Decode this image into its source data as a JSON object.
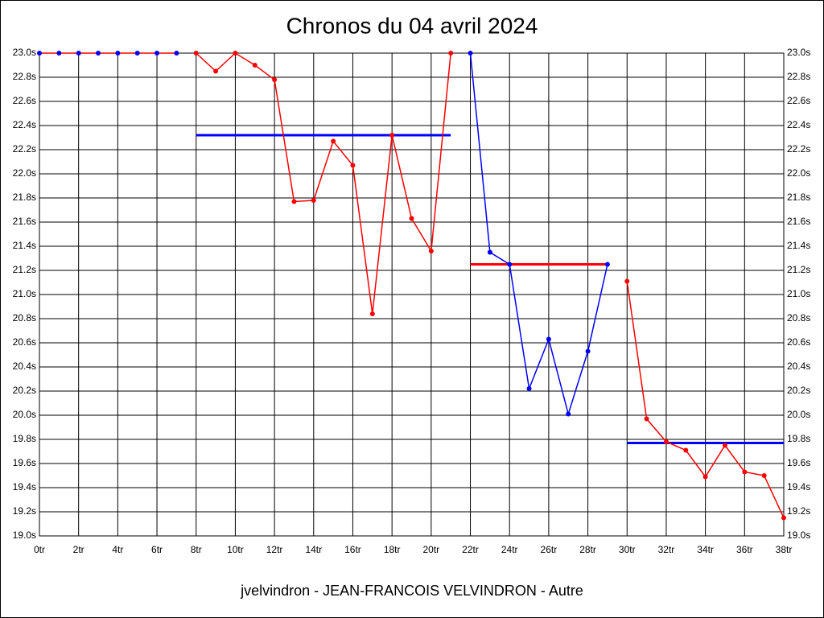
{
  "chart_data": {
    "type": "line",
    "title": "Chronos du 04 avril 2024",
    "caption": "jvelvindron - JEAN-FRANCOIS VELVINDRON - Autre",
    "xlim": [
      0,
      38
    ],
    "ylim": [
      19.0,
      23.0
    ],
    "grid": true,
    "xticks": [
      {
        "value": 0,
        "label": "0tr"
      },
      {
        "value": 2,
        "label": "2tr"
      },
      {
        "value": 4,
        "label": "4tr"
      },
      {
        "value": 6,
        "label": "6tr"
      },
      {
        "value": 8,
        "label": "8tr"
      },
      {
        "value": 10,
        "label": "10tr"
      },
      {
        "value": 12,
        "label": "12tr"
      },
      {
        "value": 14,
        "label": "14tr"
      },
      {
        "value": 16,
        "label": "16tr"
      },
      {
        "value": 18,
        "label": "18tr"
      },
      {
        "value": 20,
        "label": "20tr"
      },
      {
        "value": 22,
        "label": "22tr"
      },
      {
        "value": 24,
        "label": "24tr"
      },
      {
        "value": 26,
        "label": "26tr"
      },
      {
        "value": 28,
        "label": "28tr"
      },
      {
        "value": 30,
        "label": "30tr"
      },
      {
        "value": 32,
        "label": "32tr"
      },
      {
        "value": 34,
        "label": "34tr"
      },
      {
        "value": 36,
        "label": "36tr"
      },
      {
        "value": 38,
        "label": "38tr"
      }
    ],
    "yticks": [
      {
        "value": 19.0,
        "label": "19.0s"
      },
      {
        "value": 19.2,
        "label": "19.2s"
      },
      {
        "value": 19.4,
        "label": "19.4s"
      },
      {
        "value": 19.6,
        "label": "19.6s"
      },
      {
        "value": 19.8,
        "label": "19.8s"
      },
      {
        "value": 20.0,
        "label": "20.0s"
      },
      {
        "value": 20.2,
        "label": "20.2s"
      },
      {
        "value": 20.4,
        "label": "20.4s"
      },
      {
        "value": 20.6,
        "label": "20.6s"
      },
      {
        "value": 20.8,
        "label": "20.8s"
      },
      {
        "value": 21.0,
        "label": "21.0s"
      },
      {
        "value": 21.2,
        "label": "21.2s"
      },
      {
        "value": 21.4,
        "label": "21.4s"
      },
      {
        "value": 21.6,
        "label": "21.6s"
      },
      {
        "value": 21.8,
        "label": "21.8s"
      },
      {
        "value": 22.0,
        "label": "22.0s"
      },
      {
        "value": 22.2,
        "label": "22.2s"
      },
      {
        "value": 22.4,
        "label": "22.4s"
      },
      {
        "value": 22.6,
        "label": "22.6s"
      },
      {
        "value": 22.8,
        "label": "22.8s"
      },
      {
        "value": 23.0,
        "label": "23.0s"
      }
    ],
    "series": [
      {
        "color": "#ff0000",
        "marker_color": "#0000ff",
        "x": [
          0,
          1,
          2,
          3,
          4,
          5,
          6,
          7
        ],
        "values": [
          23.0,
          23.0,
          23.0,
          23.0,
          23.0,
          23.0,
          23.0,
          23.0
        ]
      },
      {
        "color": "#ff0000",
        "marker_color": "#ff0000",
        "x": [
          8,
          9,
          10,
          11,
          12,
          13,
          14,
          15,
          16,
          17,
          18,
          19,
          20,
          21
        ],
        "values": [
          23.0,
          22.85,
          23.0,
          22.9,
          22.78,
          21.77,
          21.78,
          22.27,
          22.07,
          20.84,
          22.32,
          21.63,
          21.36,
          23.0
        ]
      },
      {
        "color": "#0000ff",
        "marker_color": "#0000ff",
        "x": [
          22,
          23,
          24,
          25,
          26,
          27,
          28,
          29
        ],
        "values": [
          23.0,
          21.35,
          21.25,
          20.22,
          20.63,
          20.01,
          20.53,
          21.25
        ]
      },
      {
        "color": "#ff0000",
        "marker_color": "#ff0000",
        "x": [
          30,
          31,
          32,
          33,
          34,
          35,
          36,
          37,
          38
        ],
        "values": [
          21.11,
          19.97,
          19.78,
          19.71,
          19.49,
          19.75,
          19.53,
          19.5,
          19.15
        ]
      }
    ],
    "averages": [
      {
        "color": "#0000ff",
        "from": 8,
        "to": 21,
        "value": 22.32
      },
      {
        "color": "#ff0000",
        "from": 22,
        "to": 29,
        "value": 21.25
      },
      {
        "color": "#0000ff",
        "from": 30,
        "to": 38,
        "value": 19.77
      }
    ]
  }
}
